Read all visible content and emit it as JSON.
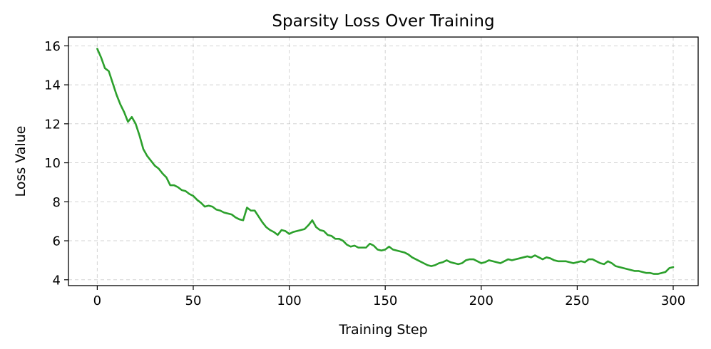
{
  "chart_data": {
    "type": "line",
    "title": "Sparsity Loss Over Training",
    "xlabel": "Training Step",
    "ylabel": "Loss Value",
    "xlim": [
      -15,
      313
    ],
    "ylim": [
      3.7,
      16.45
    ],
    "xticks": [
      0,
      50,
      100,
      150,
      200,
      250,
      300
    ],
    "yticks": [
      4,
      6,
      8,
      10,
      12,
      14,
      16
    ],
    "grid": true,
    "legend": "none",
    "series": [
      {
        "color": "#2ca02c",
        "x": [
          0,
          2,
          4,
          6,
          8,
          10,
          12,
          14,
          16,
          18,
          20,
          22,
          24,
          26,
          28,
          30,
          32,
          34,
          36,
          38,
          40,
          42,
          44,
          46,
          48,
          50,
          52,
          54,
          56,
          58,
          60,
          62,
          64,
          66,
          68,
          70,
          72,
          74,
          76,
          78,
          80,
          82,
          84,
          86,
          88,
          90,
          92,
          94,
          96,
          98,
          100,
          102,
          104,
          106,
          108,
          110,
          112,
          114,
          116,
          118,
          120,
          122,
          124,
          126,
          128,
          130,
          132,
          134,
          136,
          138,
          140,
          142,
          144,
          146,
          148,
          150,
          152,
          154,
          156,
          158,
          160,
          162,
          164,
          166,
          168,
          170,
          172,
          174,
          176,
          178,
          180,
          182,
          184,
          186,
          188,
          190,
          192,
          194,
          196,
          198,
          200,
          202,
          204,
          206,
          208,
          210,
          212,
          214,
          216,
          218,
          220,
          222,
          224,
          226,
          228,
          230,
          232,
          234,
          236,
          238,
          240,
          242,
          244,
          246,
          248,
          250,
          252,
          254,
          256,
          258,
          260,
          262,
          264,
          266,
          268,
          270,
          272,
          274,
          276,
          278,
          280,
          282,
          284,
          286,
          288,
          290,
          292,
          294,
          296,
          298,
          300
        ],
        "y": [
          15.85,
          15.4,
          14.85,
          14.7,
          14.1,
          13.5,
          13.0,
          12.6,
          12.1,
          12.35,
          12.0,
          11.4,
          10.7,
          10.35,
          10.1,
          9.85,
          9.7,
          9.45,
          9.25,
          8.85,
          8.85,
          8.75,
          8.6,
          8.55,
          8.4,
          8.3,
          8.1,
          7.95,
          7.75,
          7.8,
          7.75,
          7.6,
          7.55,
          7.45,
          7.4,
          7.35,
          7.2,
          7.1,
          7.05,
          7.7,
          7.55,
          7.55,
          7.25,
          6.95,
          6.7,
          6.55,
          6.45,
          6.3,
          6.55,
          6.5,
          6.35,
          6.45,
          6.5,
          6.55,
          6.6,
          6.8,
          7.05,
          6.7,
          6.55,
          6.5,
          6.3,
          6.25,
          6.1,
          6.1,
          6.0,
          5.8,
          5.7,
          5.75,
          5.65,
          5.65,
          5.65,
          5.85,
          5.75,
          5.55,
          5.5,
          5.55,
          5.7,
          5.55,
          5.5,
          5.45,
          5.4,
          5.3,
          5.15,
          5.05,
          4.95,
          4.85,
          4.75,
          4.7,
          4.75,
          4.85,
          4.9,
          5.0,
          4.9,
          4.85,
          4.8,
          4.85,
          5.0,
          5.05,
          5.05,
          4.95,
          4.85,
          4.9,
          5.0,
          4.95,
          4.9,
          4.85,
          4.95,
          5.05,
          5.0,
          5.05,
          5.1,
          5.15,
          5.2,
          5.15,
          5.25,
          5.15,
          5.05,
          5.15,
          5.1,
          5.0,
          4.95,
          4.95,
          4.95,
          4.9,
          4.85,
          4.9,
          4.95,
          4.9,
          5.05,
          5.05,
          4.95,
          4.85,
          4.8,
          4.95,
          4.85,
          4.7,
          4.65,
          4.6,
          4.55,
          4.5,
          4.45,
          4.45,
          4.4,
          4.35,
          4.35,
          4.3,
          4.3,
          4.35,
          4.4,
          4.6,
          4.65
        ]
      }
    ]
  }
}
